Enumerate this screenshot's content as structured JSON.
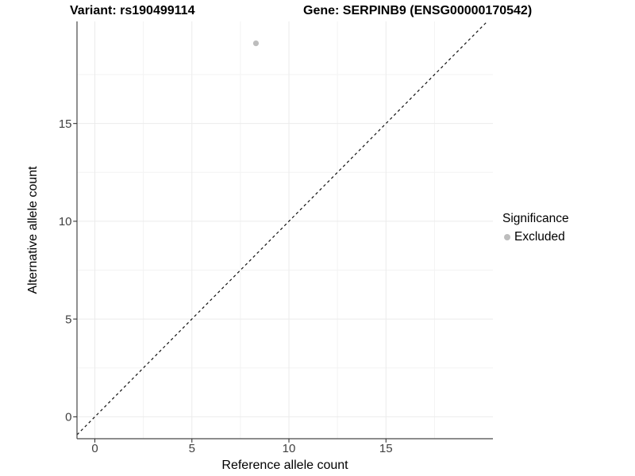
{
  "chart_data": {
    "type": "scatter",
    "title_left": "Variant: rs190499114",
    "title_right": "Gene: SERPINB9 (ENSG00000170542)",
    "xlabel": "Reference allele count",
    "ylabel": "Alternative allele count",
    "xlim": [
      -0.92,
      20.51
    ],
    "ylim": [
      -1.12,
      20.22
    ],
    "x_major_ticks": [
      0,
      5,
      10,
      15
    ],
    "y_major_ticks": [
      0,
      5,
      10,
      15
    ],
    "x_minor_ticks": [
      2.5,
      7.5,
      12.5,
      17.5
    ],
    "y_minor_ticks": [
      2.5,
      7.5,
      12.5,
      17.5
    ],
    "grid": true,
    "series": [
      {
        "name": "Excluded",
        "color": "#bdbdbd",
        "points": [
          {
            "x": 8.3,
            "y": 19.1
          }
        ]
      }
    ],
    "reference_line": {
      "slope": 1,
      "intercept": 0,
      "style": "dashed",
      "color": "#111111"
    },
    "legend": {
      "title": "Significance",
      "position": "right",
      "entries": [
        {
          "label": "Excluded",
          "color": "#bdbdbd"
        }
      ]
    },
    "colors": {
      "background": "#ffffff",
      "grid_major": "#ebebeb",
      "grid_minor": "#f3f3f3",
      "axis_line": "#474747",
      "tick_mark": "#333333",
      "tick_text": "#404040",
      "title_text": "#000000"
    }
  }
}
